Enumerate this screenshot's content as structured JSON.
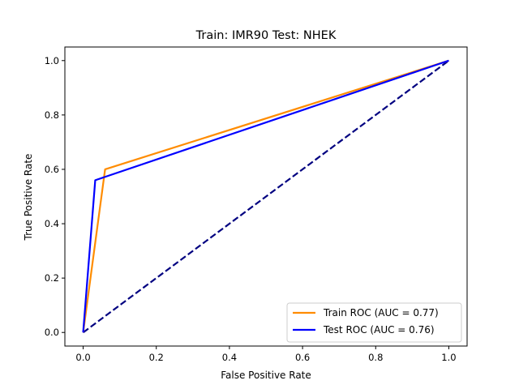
{
  "chart_data": {
    "type": "line",
    "title": "Train: IMR90   Test: NHEK",
    "xlabel": "False Positive Rate",
    "ylabel": "True Positive Rate",
    "xlim": [
      -0.05,
      1.05
    ],
    "ylim": [
      -0.05,
      1.05
    ],
    "xticks": [
      0.0,
      0.2,
      0.4,
      0.6,
      0.8,
      1.0
    ],
    "yticks": [
      0.0,
      0.2,
      0.4,
      0.6,
      0.8,
      1.0
    ],
    "xtick_labels": [
      "0.0",
      "0.2",
      "0.4",
      "0.6",
      "0.8",
      "1.0"
    ],
    "ytick_labels": [
      "0.0",
      "0.2",
      "0.4",
      "0.6",
      "0.8",
      "1.0"
    ],
    "grid": false,
    "legend_position": "bottom-right",
    "series": [
      {
        "name": "Train ROC (AUC = 0.77)",
        "color": "#ff8c00",
        "dash": "solid",
        "x": [
          0.0,
          0.06,
          1.0
        ],
        "y": [
          0.0,
          0.6,
          1.0
        ]
      },
      {
        "name": "Test ROC (AUC = 0.76)",
        "color": "#0000ff",
        "dash": "solid",
        "x": [
          0.0,
          0.033,
          1.0
        ],
        "y": [
          0.0,
          0.56,
          1.0
        ]
      },
      {
        "color": "#000080",
        "dash": "dashed",
        "x": [
          0.0,
          1.0
        ],
        "y": [
          0.0,
          1.0
        ]
      }
    ],
    "legend": [
      {
        "label": "Train ROC (AUC = 0.77)",
        "color": "#ff8c00"
      },
      {
        "label": "Test ROC (AUC = 0.76)",
        "color": "#0000ff"
      }
    ]
  }
}
